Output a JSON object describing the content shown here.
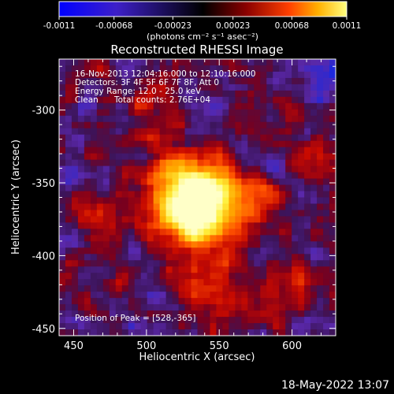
{
  "chart_data": {
    "type": "heatmap",
    "title": "Reconstructed RHESSI Image",
    "xlabel": "Heliocentric X (arcsec)",
    "ylabel": "Heliocentric Y (arcsec)",
    "xlim": [
      440,
      630
    ],
    "ylim": [
      -455,
      -265
    ],
    "x_ticks": [
      "450",
      "500",
      "550",
      "600"
    ],
    "x_tick_values": [
      450,
      500,
      550,
      600
    ],
    "y_ticks": [
      "-300",
      "-350",
      "-400",
      "-450"
    ],
    "y_tick_values": [
      -300,
      -350,
      -400,
      -450
    ],
    "colorbar": {
      "ticks": [
        "-0.0011",
        "-0.00068",
        "-0.00023",
        "0.00023",
        "0.00068",
        "0.0011"
      ],
      "tick_values": [
        -0.0011,
        -0.00068,
        -0.00023,
        0.00023,
        0.00068,
        0.0011
      ],
      "range": [
        -0.0011,
        0.0011
      ],
      "unit_label": "(photons cm⁻² s⁻¹ asec⁻²)"
    },
    "annotations": [
      "16-Nov-2013 12:04:16.000 to 12:10:16.000",
      "Detectors: 3F 4F 5F 6F 7F 8F, Att 0",
      "Energy Range: 12.0 - 25.0 keV",
      "Clean",
      "Total counts: 2.76E+04"
    ],
    "peak_label": "Position of Peak = [528,-365]",
    "peak": [
      528,
      -365
    ]
  },
  "footer": {
    "date_stamp": "18-May-2022 13:07"
  },
  "colors": {
    "background": "#000000",
    "text": "#ffffff"
  }
}
